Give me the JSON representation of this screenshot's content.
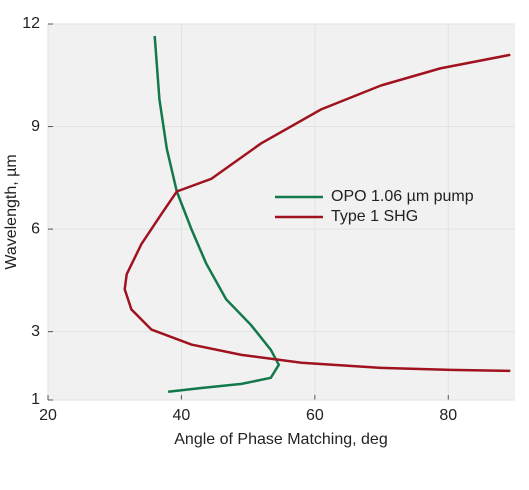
{
  "chart_data": {
    "type": "line",
    "xlabel": "Angle of Phase Matching, deg",
    "ylabel": "Wavelength, µm",
    "xlim": [
      20,
      90
    ],
    "ylim": [
      1,
      12
    ],
    "xticks": [
      20,
      40,
      60,
      80
    ],
    "yticks": [
      1,
      3,
      6,
      9,
      12
    ],
    "grid": true,
    "legend": "right",
    "series": [
      {
        "name": "OPO 1.06 µm pump",
        "color": "#13784a",
        "x": [
          36,
          36.7,
          37.8,
          39.3,
          41.5,
          43.7,
          46.7,
          50.4,
          53.4,
          54.6,
          53.4,
          49,
          43,
          38
        ],
        "values": [
          11.65,
          9.8,
          8.35,
          7.1,
          6.0,
          5.0,
          3.95,
          3.2,
          2.47,
          2.03,
          1.65,
          1.47,
          1.35,
          1.24
        ]
      },
      {
        "name": "Type 1 SHG",
        "color": "#a0121e",
        "x": [
          89.3,
          78.8,
          69.9,
          60.9,
          51.9,
          44.5,
          39.3,
          37,
          34,
          31.8,
          31.5,
          32.5,
          35.5,
          41.5,
          49,
          58,
          69.9,
          80.3,
          89.3
        ],
        "values": [
          11.1,
          10.7,
          10.2,
          9.5,
          8.5,
          7.47,
          7.1,
          6.44,
          5.56,
          4.68,
          4.24,
          3.65,
          3.06,
          2.62,
          2.32,
          2.09,
          1.94,
          1.88,
          1.85
        ]
      }
    ]
  }
}
